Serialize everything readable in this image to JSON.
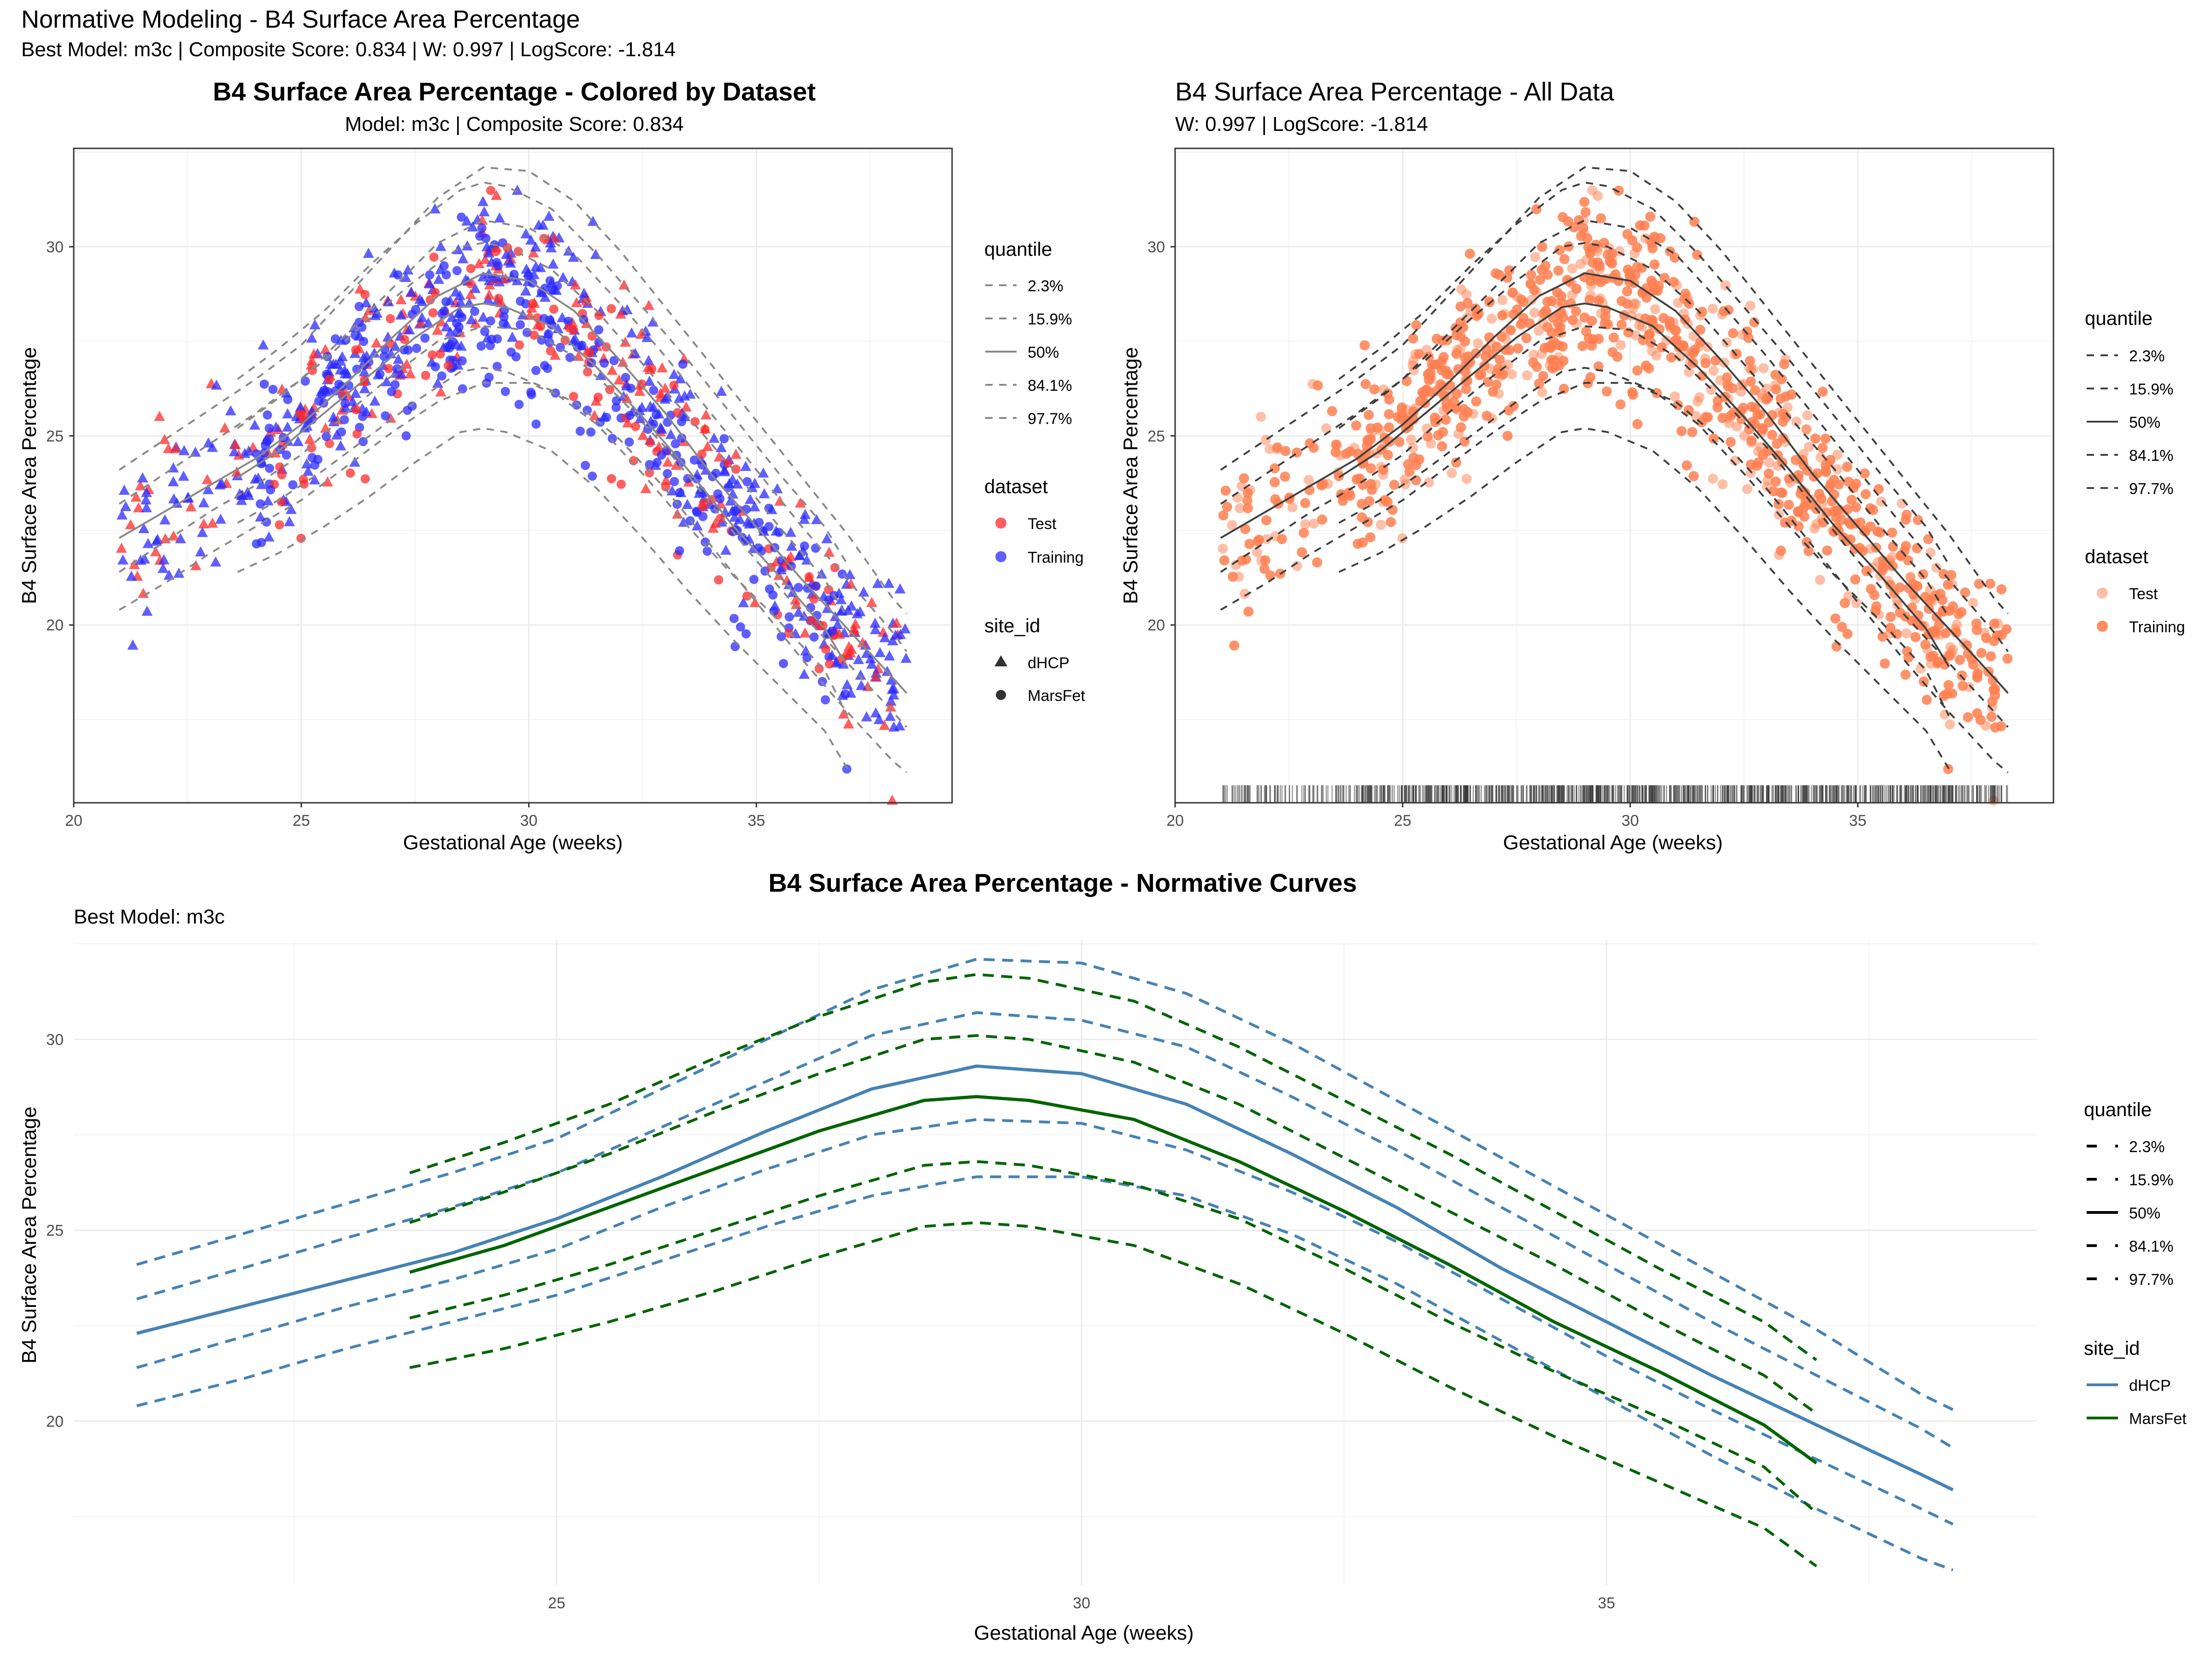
{
  "figure": {
    "title": "Normative Modeling - B4 Surface Area Percentage",
    "subtitle": "Best Model: m3c | Composite Score: 0.834 | W: 0.997 | LogScore: -1.814"
  },
  "colors": {
    "test": "#ff2a2a",
    "training": "#2a2aff",
    "all_data": "#ff7f50",
    "quantile_gray": "#888888",
    "quantile_dark": "#404040",
    "dhcp": "#4682b4",
    "marsfet": "#006400",
    "grid": "#ebebeb"
  },
  "chart_data": [
    {
      "type": "scatter",
      "title": "B4 Surface Area Percentage - Colored by Dataset",
      "subtitle": "Model: m3c | Composite Score: 0.834",
      "xlabel": "Gestational Age (weeks)",
      "ylabel": "B4 Surface Area Percentage",
      "xlim": [
        20,
        39.3
      ],
      "ylim": [
        15.3,
        32.6
      ],
      "xticks": [
        "20",
        "25",
        "30",
        "35"
      ],
      "yticks": [
        "20",
        "25",
        "30"
      ],
      "grid": true,
      "legend_position": "right",
      "legend": {
        "quantile": {
          "title": "quantile",
          "labels": [
            "2.3%",
            "15.9%",
            "50%",
            "84.1%",
            "97.7%"
          ]
        },
        "dataset": {
          "title": "dataset",
          "labels": [
            "Test",
            "Training"
          ]
        },
        "site_id": {
          "title": "site_id",
          "labels": [
            "dHCP",
            "MarsFet"
          ]
        }
      },
      "points_description": "approximately 1000 points: triangles = dHCP (GA ~21-38.3), circles = MarsFet (GA ~24-37); red = Test, blue = Training",
      "quantile_curves": {
        "x": [
          21,
          22,
          23,
          24,
          25,
          26,
          27,
          28,
          29,
          30,
          31,
          32,
          33,
          34,
          35,
          36,
          37,
          38,
          38.3
        ],
        "q2.3": [
          20.4,
          21.1,
          21.9,
          22.6,
          23.3,
          24.2,
          25.1,
          25.9,
          26.4,
          26.4,
          25.9,
          24.9,
          23.6,
          22.1,
          20.6,
          19.1,
          17.7,
          16.4,
          16.1
        ],
        "q15.9": [
          21.4,
          22.2,
          23.0,
          23.7,
          24.5,
          25.6,
          26.6,
          27.5,
          27.9,
          27.8,
          27.1,
          26.0,
          24.7,
          23.2,
          21.7,
          20.3,
          19.0,
          17.7,
          17.3
        ],
        "q50": [
          22.3,
          23.0,
          23.7,
          24.4,
          25.3,
          26.4,
          27.6,
          28.7,
          29.3,
          29.1,
          28.3,
          27.0,
          25.6,
          24.0,
          22.6,
          21.2,
          19.9,
          18.6,
          18.2
        ],
        "q84.1": [
          23.2,
          24.0,
          24.8,
          25.6,
          26.5,
          27.7,
          28.9,
          30.1,
          30.7,
          30.5,
          29.8,
          28.5,
          27.1,
          25.6,
          24.1,
          22.6,
          21.2,
          19.8,
          19.3
        ],
        "q97.7": [
          24.1,
          24.9,
          25.7,
          26.5,
          27.4,
          28.7,
          30.0,
          31.3,
          32.1,
          32.0,
          31.2,
          29.9,
          28.4,
          26.9,
          25.4,
          23.9,
          22.4,
          20.7,
          20.3
        ]
      }
    },
    {
      "type": "scatter",
      "title": "B4 Surface Area Percentage - All Data",
      "subtitle": "W: 0.997 | LogScore: -1.814",
      "xlabel": "Gestational Age (weeks)",
      "ylabel": "B4 Surface Area Percentage",
      "xlim": [
        20,
        39.3
      ],
      "ylim": [
        15.3,
        32.6
      ],
      "xticks": [
        "20",
        "25",
        "30",
        "35"
      ],
      "yticks": [
        "20",
        "25",
        "30"
      ],
      "grid": true,
      "rug": true,
      "legend_position": "right",
      "legend": {
        "quantile": {
          "title": "quantile",
          "labels": [
            "2.3%",
            "15.9%",
            "50%",
            "84.1%",
            "97.7%"
          ]
        },
        "dataset": {
          "title": "dataset",
          "labels": [
            "Test",
            "Training"
          ]
        }
      },
      "points_description": "same ~1000 points drawn as coral circles; Test lighter, Training darker"
    },
    {
      "type": "line",
      "title": "B4 Surface Area Percentage - Normative Curves",
      "subtitle": "Best Model: m3c",
      "xlabel": "Gestational Age (weeks)",
      "ylabel": "B4 Surface Area Percentage",
      "xlim": [
        20.4,
        39.1
      ],
      "ylim": [
        15.7,
        32.6
      ],
      "xticks": [
        "25",
        "30",
        "35"
      ],
      "yticks": [
        "20",
        "25",
        "30"
      ],
      "grid": true,
      "legend_position": "right",
      "legend": {
        "quantile": {
          "title": "quantile",
          "labels": [
            "2.3%",
            "15.9%",
            "50%",
            "84.1%",
            "97.7%"
          ]
        },
        "site_id": {
          "title": "site_id",
          "labels": [
            "dHCP",
            "MarsFet"
          ]
        }
      },
      "series": [
        {
          "name": "dHCP",
          "x": [
            21,
            22,
            23,
            24,
            25,
            26,
            27,
            28,
            29,
            30,
            31,
            32,
            33,
            34,
            35,
            36,
            37,
            38,
            38.3
          ],
          "q2.3": [
            20.4,
            21.1,
            21.9,
            22.6,
            23.3,
            24.2,
            25.1,
            25.9,
            26.4,
            26.4,
            25.9,
            24.9,
            23.6,
            22.1,
            20.6,
            19.1,
            17.7,
            16.4,
            16.1
          ],
          "q15.9": [
            21.4,
            22.2,
            23.0,
            23.7,
            24.5,
            25.6,
            26.6,
            27.5,
            27.9,
            27.8,
            27.1,
            26.0,
            24.7,
            23.2,
            21.7,
            20.3,
            19.0,
            17.7,
            17.3
          ],
          "q50": [
            22.3,
            23.0,
            23.7,
            24.4,
            25.3,
            26.4,
            27.6,
            28.7,
            29.3,
            29.1,
            28.3,
            27.0,
            25.6,
            24.0,
            22.6,
            21.2,
            19.9,
            18.6,
            18.2
          ],
          "q84.1": [
            23.2,
            24.0,
            24.8,
            25.6,
            26.5,
            27.7,
            28.9,
            30.1,
            30.7,
            30.5,
            29.8,
            28.5,
            27.1,
            25.6,
            24.1,
            22.6,
            21.2,
            19.8,
            19.3
          ],
          "q97.7": [
            24.1,
            24.9,
            25.7,
            26.5,
            27.4,
            28.7,
            30.0,
            31.3,
            32.1,
            32.0,
            31.2,
            29.9,
            28.4,
            26.9,
            25.4,
            23.9,
            22.4,
            20.7,
            20.3
          ]
        },
        {
          "name": "MarsFet",
          "x": [
            23.6,
            24.5,
            25.5,
            26.5,
            27.5,
            28.5,
            29,
            29.5,
            30.5,
            31.5,
            32.5,
            33.5,
            34.5,
            35.5,
            36.5,
            37
          ],
          "q2.3": [
            21.4,
            21.9,
            22.6,
            23.4,
            24.3,
            25.1,
            25.2,
            25.1,
            24.6,
            23.6,
            22.3,
            20.9,
            19.6,
            18.4,
            17.2,
            16.2
          ],
          "q15.9": [
            22.7,
            23.3,
            24.1,
            25.0,
            25.9,
            26.7,
            26.8,
            26.7,
            26.2,
            25.3,
            24.0,
            22.6,
            21.3,
            20.1,
            18.8,
            17.6
          ],
          "q50": [
            23.9,
            24.6,
            25.6,
            26.6,
            27.6,
            28.4,
            28.5,
            28.4,
            27.9,
            26.8,
            25.5,
            24.1,
            22.6,
            21.3,
            19.9,
            18.9
          ],
          "q84.1": [
            25.2,
            26.0,
            27.0,
            28.1,
            29.1,
            30.0,
            30.1,
            30.0,
            29.4,
            28.3,
            26.9,
            25.5,
            24.1,
            22.6,
            21.2,
            20.2
          ],
          "q97.7": [
            26.5,
            27.3,
            28.3,
            29.5,
            30.6,
            31.5,
            31.7,
            31.6,
            31.0,
            29.8,
            28.4,
            27.0,
            25.5,
            24.0,
            22.6,
            21.6
          ]
        }
      ]
    }
  ]
}
